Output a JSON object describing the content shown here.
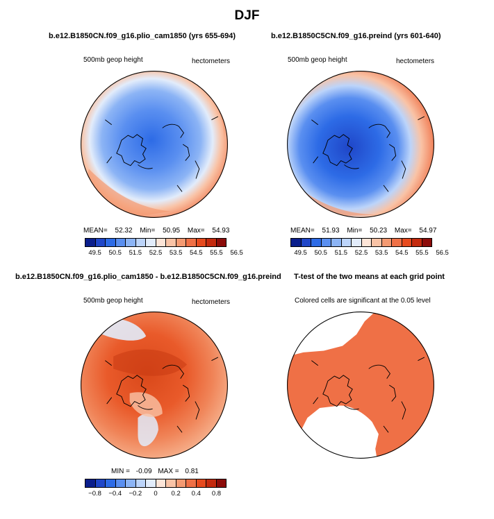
{
  "figure": {
    "title": "DJF",
    "top_left": {
      "title": "b.e12.B1850CN.f09_g16.plio_cam1850 (yrs 655-694)",
      "left_label": "500mb geop height",
      "right_label": "hectometers",
      "mean_label": "MEAN=",
      "mean": "52.32",
      "min_label": "Min=",
      "min": "50.95",
      "max_label": "Max=",
      "max": "54.93"
    },
    "top_right": {
      "title": "b.e12.B1850C5CN.f09_g16.preind (yrs 601-640)",
      "left_label": "500mb geop height",
      "right_label": "hectometers",
      "mean_label": "MEAN=",
      "mean": "51.93",
      "min_label": "Min=",
      "min": "50.23",
      "max_label": "Max=",
      "max": "54.97"
    },
    "bottom_left": {
      "title": "b.e12.B1850CN.f09_g16.plio_cam1850 - b.e12.B1850C5CN.f09_g16.preind",
      "left_label": "500mb geop height",
      "right_label": "hectometers",
      "min_label": "MIN =",
      "min": "-0.09",
      "max_label": "MAX =",
      "max": "0.81"
    },
    "bottom_right": {
      "title": "T-test of the two means at each grid point",
      "subtitle": "Colored cells are significant at the 0.05 level"
    },
    "colorbar_abs": {
      "colors": [
        "#0a1e8c",
        "#1f46c8",
        "#2d6be6",
        "#5a8ff0",
        "#8cb4f5",
        "#bcd4fa",
        "#e2ecfb",
        "#fde5d8",
        "#f9c3a6",
        "#f49a72",
        "#ef7046",
        "#e64a1e",
        "#c42a0e",
        "#8c0c0a"
      ],
      "ticks": [
        "49.5",
        "50.5",
        "51.5",
        "52.5",
        "53.5",
        "54.5",
        "55.5",
        "56.5"
      ]
    },
    "colorbar_diff": {
      "colors": [
        "#0a1e8c",
        "#1f46c8",
        "#2d6be6",
        "#5a8ff0",
        "#8cb4f5",
        "#bcd4fa",
        "#e2ecfb",
        "#fde5d8",
        "#f9c3a6",
        "#f49a72",
        "#ef7046",
        "#e64a1e",
        "#c42a0e",
        "#8c0c0a"
      ],
      "ticks": [
        "−0.8",
        "−0.4",
        "−0.2",
        "0",
        "0.2",
        "0.4",
        "0.8"
      ]
    }
  }
}
